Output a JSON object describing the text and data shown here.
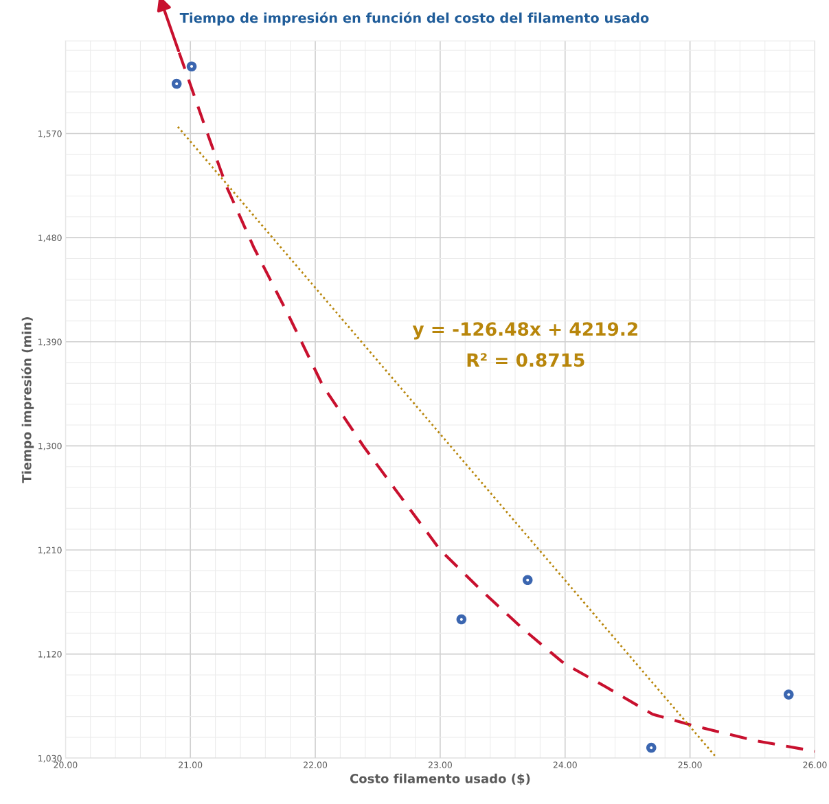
{
  "chart_data": {
    "type": "scatter",
    "title": "Tiempo de impresión en función del costo del filamento usado",
    "xlabel": "Costo filamento usado ($)",
    "ylabel": "Tiempo impresión (min)",
    "xlim": [
      20,
      26
    ],
    "ylim": [
      1030,
      1650
    ],
    "xticks": [
      {
        "value": 20,
        "label": "20.00"
      },
      {
        "value": 21,
        "label": "21.00"
      },
      {
        "value": 22,
        "label": "22.00"
      },
      {
        "value": 23,
        "label": "23.00"
      },
      {
        "value": 24,
        "label": "24.00"
      },
      {
        "value": 25,
        "label": "25.00"
      },
      {
        "value": 26,
        "label": "26.00"
      }
    ],
    "yticks": [
      {
        "value": 1030,
        "label": "1,030"
      },
      {
        "value": 1120,
        "label": "1,120"
      },
      {
        "value": 1210,
        "label": "1,210"
      },
      {
        "value": 1300,
        "label": "1,300"
      },
      {
        "value": 1390,
        "label": "1,390"
      },
      {
        "value": 1480,
        "label": "1,480"
      },
      {
        "value": 1570,
        "label": "1,570"
      }
    ],
    "grid": true,
    "legend": false,
    "series": [
      {
        "color": "#3b66b0",
        "marker": "circle",
        "x": [
          20.89,
          21.01,
          23.17,
          23.7,
          24.69,
          25.79
        ],
        "values": [
          1613,
          1628,
          1150,
          1184,
          1039,
          1085
        ]
      },
      {
        "type": "line",
        "color": "#c8102e",
        "line_style": "dashed",
        "marker": "none",
        "x": [
          20.91,
          21.13,
          21.29,
          21.51,
          21.79,
          22.06,
          22.39,
          22.67,
          23.0,
          23.33,
          23.66,
          23.99,
          24.32,
          24.7,
          25.03,
          25.53,
          26.0
        ],
        "values": [
          1640,
          1572,
          1524,
          1471,
          1412,
          1352,
          1299,
          1258,
          1210,
          1175,
          1142,
          1112,
          1092,
          1068,
          1058,
          1045,
          1036
        ]
      },
      {
        "type": "line",
        "color": "#b8860b",
        "line_style": "dotted",
        "marker": "none",
        "x": [
          20.9,
          25.2
        ],
        "values": [
          1575.8,
          1032
        ]
      }
    ],
    "annotations": [
      "y = -126.48x + 4219.2",
      "R² = 0.8715"
    ]
  }
}
